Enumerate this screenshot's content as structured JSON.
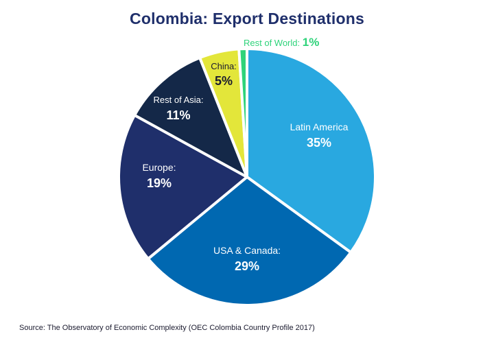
{
  "chart_data": {
    "type": "pie",
    "title": "Colombia: Export Destinations",
    "slices": [
      {
        "label": "Latin America",
        "display_label": "Latin America",
        "value": 35,
        "value_label": "35%",
        "color": "#29a8e0"
      },
      {
        "label": "USA & Canada",
        "display_label": "USA & Canada:",
        "value": 29,
        "value_label": "29%",
        "color": "#0068b1"
      },
      {
        "label": "Europe",
        "display_label": "Europe:",
        "value": 19,
        "value_label": "19%",
        "color": "#1f2f6b"
      },
      {
        "label": "Rest of Asia",
        "display_label": "Rest of Asia:",
        "value": 11,
        "value_label": "11%",
        "color": "#142848"
      },
      {
        "label": "China",
        "display_label": "China:",
        "value": 5,
        "value_label": "5%",
        "color": "#e3e63a"
      },
      {
        "label": "Rest of World",
        "display_label": "Rest of World:",
        "value": 1,
        "value_label": "1%",
        "color": "#2ed37a"
      }
    ]
  },
  "footer": {
    "source": "Source: The Observatory of Economic Complexity (OEC Colombia Country Profile 2017)"
  }
}
